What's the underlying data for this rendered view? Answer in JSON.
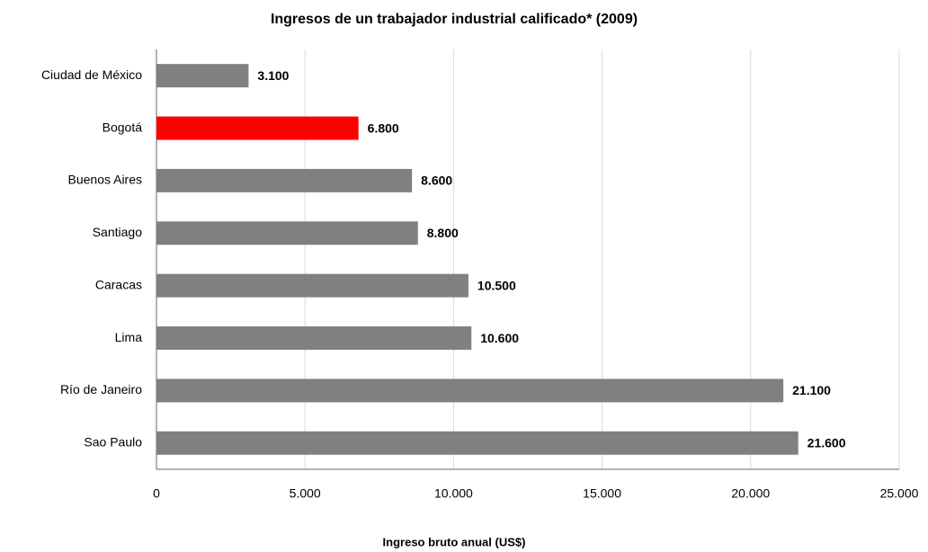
{
  "chart_data": {
    "type": "bar",
    "orientation": "horizontal",
    "title": "Ingresos de un trabajador industrial calificado* (2009)",
    "x_label": "Ingreso bruto anual (US$)",
    "categories": [
      "Ciudad de México",
      "Bogotá",
      "Buenos Aires",
      "Santiago",
      "Caracas",
      "Lima",
      "Río de Janeiro",
      "Sao Paulo"
    ],
    "values": [
      3100,
      6800,
      8600,
      8800,
      10500,
      10600,
      21100,
      21600
    ],
    "value_labels": [
      "3.100",
      "6.800",
      "8.600",
      "8.800",
      "10.500",
      "10.600",
      "21.100",
      "21.600"
    ],
    "colors": [
      "#808080",
      "#ff0000",
      "#808080",
      "#808080",
      "#808080",
      "#808080",
      "#808080",
      "#808080"
    ],
    "xlim": [
      0,
      25000
    ],
    "xticks": [
      0,
      {
        "value": 5000,
        "label": "5.000"
      },
      {
        "value": 10000,
        "label": "10.000"
      },
      {
        "value": 15000,
        "label": "15.000"
      },
      {
        "value": 20000,
        "label": "20.000"
      },
      {
        "value": 25000,
        "label": "25.000"
      }
    ],
    "grid": true
  }
}
